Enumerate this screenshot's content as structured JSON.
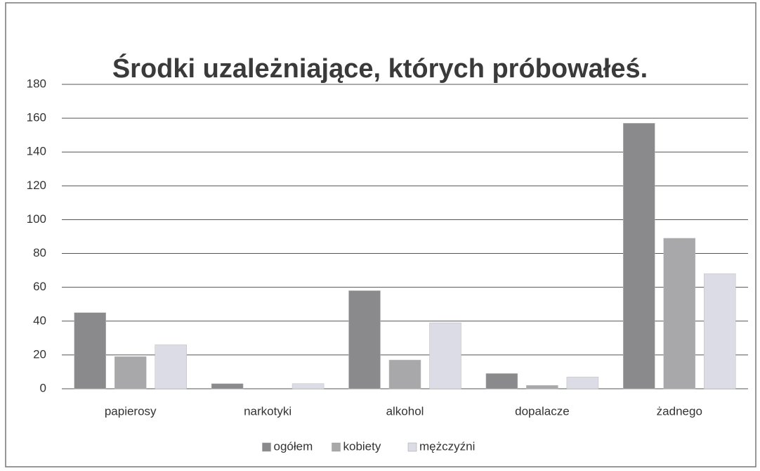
{
  "chart_data": {
    "type": "bar",
    "title": "Środki uzależniające, których próbowałeś.",
    "categories": [
      "papierosy",
      "narkotyki",
      "alkohol",
      "dopalacze",
      "żadnego"
    ],
    "series": [
      {
        "name": "ogółem",
        "color": "#8a8a8c",
        "values": [
          45,
          3,
          58,
          9,
          157
        ]
      },
      {
        "name": "kobiety",
        "color": "#a8a8aa",
        "values": [
          19,
          0,
          17,
          2,
          89
        ]
      },
      {
        "name": "mężczyźni",
        "color": "#dcdce6",
        "values": [
          26,
          3,
          39,
          7,
          68
        ]
      }
    ],
    "ylim": [
      0,
      180
    ],
    "yticks": [
      0,
      20,
      40,
      60,
      80,
      100,
      120,
      140,
      160,
      180
    ],
    "grid": true,
    "legend": "bottom"
  }
}
